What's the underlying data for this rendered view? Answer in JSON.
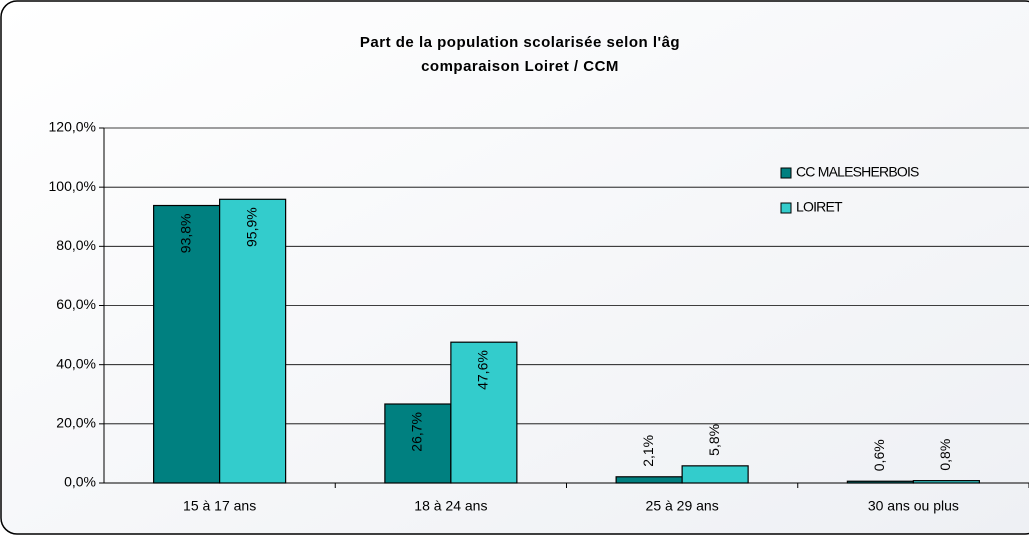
{
  "chart_data": {
    "type": "bar",
    "title": "Part de la population scolarisée selon l'âg",
    "subtitle": "comparaison Loiret / CCM",
    "categories": [
      "15 à 17 ans",
      "18 à 24 ans",
      "25 à 29 ans",
      "30 ans ou plus"
    ],
    "series": [
      {
        "name": "CC MALESHERBOIS",
        "color": "#008080",
        "values": [
          93.8,
          26.7,
          2.1,
          0.6
        ],
        "value_labels": [
          "93,8%",
          "26,7%",
          "2,1%",
          "0,6%"
        ]
      },
      {
        "name": "LOIRET",
        "color": "#33CCCC",
        "values": [
          95.9,
          47.6,
          5.8,
          0.8
        ],
        "value_labels": [
          "95,9%",
          "47,6%",
          "5,8%",
          "0,8%"
        ]
      }
    ],
    "ylim": [
      0,
      120
    ],
    "yticks": [
      {
        "value": 0,
        "label": "0,0%"
      },
      {
        "value": 20,
        "label": "20,0%"
      },
      {
        "value": 40,
        "label": "40,0%"
      },
      {
        "value": 60,
        "label": "60,0%"
      },
      {
        "value": 80,
        "label": "80,0%"
      },
      {
        "value": 100,
        "label": "100,0%"
      },
      {
        "value": 120,
        "label": "120,0%"
      }
    ],
    "grid": true,
    "legend": "upper right"
  }
}
